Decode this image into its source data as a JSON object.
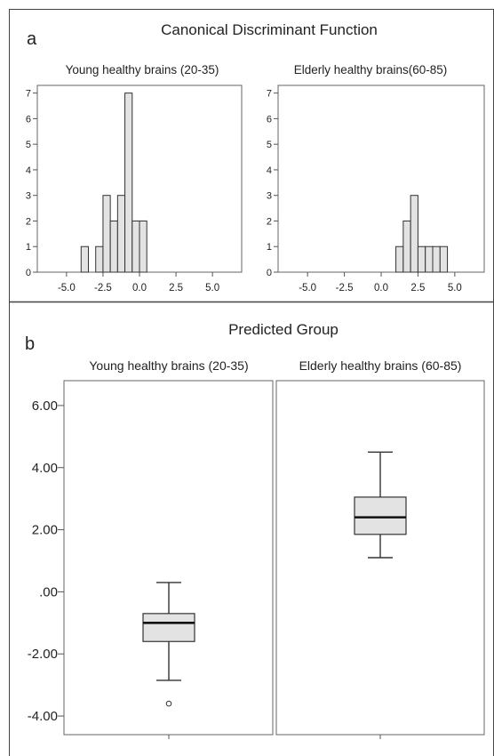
{
  "panel_a": {
    "letter": "a",
    "title": "Canonical Discriminant Function"
  },
  "panel_b": {
    "letter": "b",
    "title": "Predicted Group"
  },
  "chart_data": [
    {
      "type": "bar",
      "subtype": "histogram",
      "title": "Young healthy brains (20-35)",
      "xlim": [
        -7.0,
        7.0
      ],
      "ylim": [
        0,
        7.3
      ],
      "xticks": [
        -5.0,
        -2.5,
        0.0,
        2.5,
        5.0
      ],
      "xtick_labels": [
        "-5.0",
        "-2.5",
        "0.0",
        "2.5",
        "5.0"
      ],
      "yticks": [
        0,
        1,
        2,
        3,
        4,
        5,
        6,
        7
      ],
      "ytick_labels": [
        "0",
        "1",
        "2",
        "3",
        "4",
        "5",
        "6",
        "7"
      ],
      "bin_width": 0.5,
      "bins": [
        {
          "start": -4.0,
          "count": 1
        },
        {
          "start": -3.0,
          "count": 1
        },
        {
          "start": -2.5,
          "count": 3
        },
        {
          "start": -2.0,
          "count": 2
        },
        {
          "start": -1.5,
          "count": 3
        },
        {
          "start": -1.0,
          "count": 7
        },
        {
          "start": -0.5,
          "count": 2
        },
        {
          "start": 0.0,
          "count": 2
        }
      ],
      "bar_color": "#e3e3e3",
      "grid": false
    },
    {
      "type": "bar",
      "subtype": "histogram",
      "title": "Elderly healthy brains(60-85)",
      "xlim": [
        -7.0,
        7.0
      ],
      "ylim": [
        0,
        7.3
      ],
      "xticks": [
        -5.0,
        -2.5,
        0.0,
        2.5,
        5.0
      ],
      "xtick_labels": [
        "-5.0",
        "-2.5",
        "0.0",
        "2.5",
        "5.0"
      ],
      "yticks": [
        0,
        1,
        2,
        3,
        4,
        5,
        6,
        7
      ],
      "ytick_labels": [
        "0",
        "1",
        "2",
        "3",
        "4",
        "5",
        "6",
        "7"
      ],
      "bin_width": 0.5,
      "bins": [
        {
          "start": 1.0,
          "count": 1
        },
        {
          "start": 1.5,
          "count": 2
        },
        {
          "start": 2.0,
          "count": 3
        },
        {
          "start": 2.5,
          "count": 1
        },
        {
          "start": 3.0,
          "count": 1
        },
        {
          "start": 3.5,
          "count": 1
        },
        {
          "start": 4.0,
          "count": 1
        }
      ],
      "bar_color": "#e3e3e3",
      "grid": false
    },
    {
      "type": "boxplot",
      "title": "Predicted Group",
      "ylim": [
        -4.6,
        6.8
      ],
      "yticks": [
        -4,
        -2,
        0,
        2,
        4,
        6
      ],
      "ytick_labels": [
        "-4.00",
        "-2.00",
        ".00",
        "2.00",
        "4.00",
        "6.00"
      ],
      "box_color": "#e3e3e3",
      "groups": [
        {
          "label": "Young healthy brains (20-35)",
          "whisker_low": -2.85,
          "q1": -1.6,
          "median": -1.0,
          "q3": -0.7,
          "whisker_high": 0.3,
          "outliers": [
            -3.6
          ]
        },
        {
          "label": "Elderly healthy brains (60-85)",
          "whisker_low": 1.1,
          "q1": 1.85,
          "median": 2.4,
          "q3": 3.05,
          "whisker_high": 4.5,
          "outliers": []
        }
      ],
      "grid": false
    }
  ]
}
